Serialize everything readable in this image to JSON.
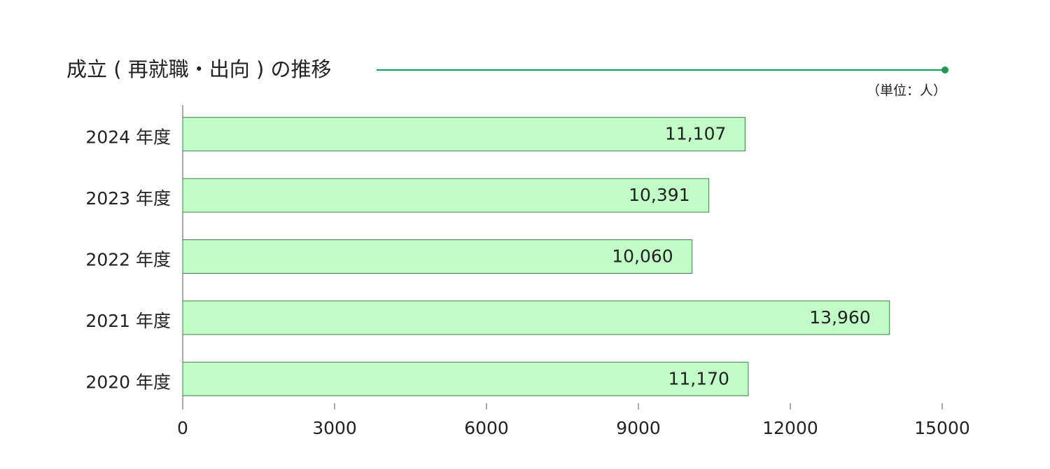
{
  "chart_data": {
    "type": "bar",
    "title": "成立 ( 再就職・出向 ) の推移",
    "unit": "（単位：人）",
    "categories": [
      "2024 年度",
      "2023 年度",
      "2022 年度",
      "2021 年度",
      "2020 年度"
    ],
    "values": [
      11107,
      10391,
      10060,
      13960,
      11170
    ],
    "value_labels": [
      "11,107",
      "10,391",
      "10,060",
      "13,960",
      "11,170"
    ],
    "color": "#c2fcc6",
    "edge_color": "#3f7f4a",
    "accent_color": "#1a9a55",
    "xlim": [
      0,
      15000
    ],
    "xticks": [
      0,
      3000,
      6000,
      9000,
      12000,
      15000
    ]
  }
}
